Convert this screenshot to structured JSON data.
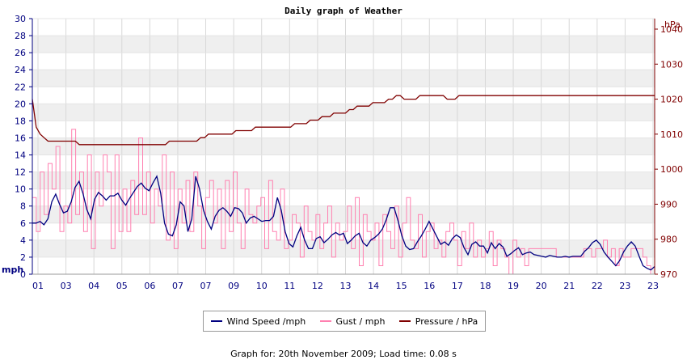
{
  "chart_data": {
    "type": "line",
    "title": "Daily graph of Weather",
    "left_axis": {
      "unit_label": "mph",
      "ticks": [
        0,
        2,
        4,
        6,
        8,
        10,
        12,
        14,
        16,
        18,
        20,
        22,
        24,
        26,
        28,
        30
      ],
      "ylim": [
        0,
        30
      ],
      "color": "#000080"
    },
    "right_axis": {
      "unit_label": "hPa",
      "ticks": [
        970,
        980,
        990,
        1000,
        1010,
        1020,
        1030,
        1040
      ],
      "ylim": [
        970,
        1043
      ],
      "color": "#800000"
    },
    "x_ticks": [
      "01",
      "03",
      "04",
      "05",
      "06",
      "07",
      "07",
      "09",
      "10",
      "11",
      "12",
      "13",
      "14",
      "15",
      "16",
      "17",
      "18",
      "19",
      "20",
      "21",
      "22",
      "23",
      "23"
    ],
    "grid": true,
    "series": [
      {
        "name": "Wind Speed /mph",
        "axis": "left",
        "color": "#000080",
        "values": [
          6,
          6,
          6.2,
          5.8,
          6.5,
          8.5,
          9.4,
          8.2,
          7.2,
          7.4,
          8.5,
          10.2,
          10.9,
          9.5,
          7.6,
          6.5,
          8.8,
          9.6,
          9.2,
          8.7,
          9.2,
          9.2,
          9.5,
          8.7,
          8.1,
          8.9,
          9.6,
          10.3,
          10.7,
          10.1,
          9.8,
          10.7,
          11.5,
          9.5,
          6,
          4.7,
          4.5,
          5.8,
          8.5,
          8,
          5,
          6.5,
          11.5,
          10,
          7.5,
          6.2,
          5.3,
          6.8,
          7.5,
          7.8,
          7.4,
          6.8,
          7.8,
          7.7,
          7.2,
          6,
          6.6,
          6.8,
          6.5,
          6.2,
          6.3,
          6.3,
          6.8,
          9,
          7.5,
          5,
          3.6,
          3.2,
          4.5,
          5.5,
          4,
          3,
          3,
          4.2,
          4.4,
          3.7,
          4.1,
          4.6,
          4.9,
          4.6,
          4.8,
          3.6,
          4,
          4.5,
          4.8,
          3.7,
          3.3,
          4,
          4.3,
          4.7,
          5.3,
          6.4,
          7.8,
          7.8,
          6.3,
          4.5,
          3.3,
          2.9,
          3,
          3.8,
          4.5,
          5.3,
          6.2,
          5.3,
          4.4,
          3.5,
          3.8,
          3.4,
          4.2,
          4.6,
          4.3,
          3.1,
          2.3,
          3.5,
          3.8,
          3.3,
          3.3,
          2.5,
          3.7,
          3,
          3.6,
          3.2,
          2.1,
          2.4,
          2.8,
          3.1,
          2.3,
          2.5,
          2.6,
          2.3,
          2.2,
          2.1,
          2,
          2.2,
          2.1,
          2,
          2,
          2.1,
          2,
          2.1,
          2.1,
          2.1,
          2.7,
          3.1,
          3.7,
          4,
          3.5,
          2.6,
          2,
          1.5,
          1,
          1.6,
          2.6,
          3.3,
          3.8,
          3.3,
          2.1,
          1,
          0.7,
          0.5,
          0.9
        ]
      },
      {
        "name": "Gust / mph",
        "axis": "left",
        "color": "#ff80b0",
        "values": [
          9,
          5,
          12,
          7,
          13,
          10,
          15,
          5,
          8,
          6,
          17,
          7,
          12,
          5,
          14,
          3,
          12,
          8,
          14,
          12,
          3,
          14,
          5,
          10,
          5,
          11,
          7,
          16,
          7,
          12,
          6,
          10,
          8,
          14,
          4,
          12,
          3,
          10,
          6,
          11,
          5,
          12,
          8,
          3,
          9,
          11,
          6,
          10,
          3,
          11,
          5,
          12,
          6,
          3,
          10,
          7,
          6,
          8,
          9,
          3,
          11,
          5,
          4,
          10,
          3,
          4,
          7,
          6,
          2,
          8,
          5,
          4,
          7,
          3,
          6,
          8,
          2,
          6,
          4,
          5,
          8,
          3,
          9,
          1,
          7,
          5,
          4,
          6,
          1,
          7,
          5,
          3,
          8,
          2,
          6,
          9,
          4,
          3,
          7,
          2,
          5,
          6,
          3,
          4,
          2,
          5,
          6,
          4,
          1,
          5,
          3,
          6,
          2,
          4,
          2,
          3,
          5,
          1,
          4,
          3,
          2,
          0,
          4,
          2,
          3,
          1,
          3,
          3,
          3,
          3,
          3,
          3,
          3,
          2,
          2,
          2,
          2,
          2,
          2,
          2,
          3,
          3,
          2,
          3,
          3,
          4,
          2,
          3,
          1,
          3,
          2,
          2,
          3,
          3,
          3,
          2,
          1,
          0,
          1
        ]
      },
      {
        "name": "Pressure / hPa",
        "axis": "right",
        "color": "#800000",
        "values": [
          1020,
          1012,
          1010,
          1009,
          1008,
          1008,
          1008,
          1008,
          1008,
          1008,
          1008,
          1008,
          1007,
          1007,
          1007,
          1007,
          1007,
          1007,
          1007,
          1007,
          1007,
          1007,
          1007,
          1007,
          1007,
          1007,
          1007,
          1007,
          1007,
          1007,
          1007,
          1007,
          1007,
          1007,
          1007,
          1008,
          1008,
          1008,
          1008,
          1008,
          1008,
          1008,
          1008,
          1009,
          1009,
          1010,
          1010,
          1010,
          1010,
          1010,
          1010,
          1010,
          1011,
          1011,
          1011,
          1011,
          1011,
          1012,
          1012,
          1012,
          1012,
          1012,
          1012,
          1012,
          1012,
          1012,
          1012,
          1013,
          1013,
          1013,
          1013,
          1014,
          1014,
          1014,
          1015,
          1015,
          1015,
          1016,
          1016,
          1016,
          1016,
          1017,
          1017,
          1018,
          1018,
          1018,
          1018,
          1019,
          1019,
          1019,
          1019,
          1020,
          1020,
          1021,
          1021,
          1020,
          1020,
          1020,
          1020,
          1021,
          1021,
          1021,
          1021,
          1021,
          1021,
          1021,
          1020,
          1020,
          1020,
          1021,
          1021,
          1021,
          1021,
          1021,
          1021,
          1021,
          1021,
          1021,
          1021,
          1021,
          1021,
          1021,
          1021,
          1021,
          1021,
          1021,
          1021,
          1021,
          1021,
          1021,
          1021,
          1021,
          1021,
          1021,
          1021,
          1021,
          1021,
          1021,
          1021,
          1021,
          1021,
          1021,
          1021,
          1021,
          1021,
          1021,
          1021,
          1021,
          1021,
          1021,
          1021,
          1021,
          1021,
          1021,
          1021,
          1021,
          1021,
          1021,
          1021,
          1021
        ]
      }
    ],
    "legend_position": "bottom"
  },
  "footer": {
    "text": "Graph for: 20th November 2009; Load time: 0.08 s"
  }
}
